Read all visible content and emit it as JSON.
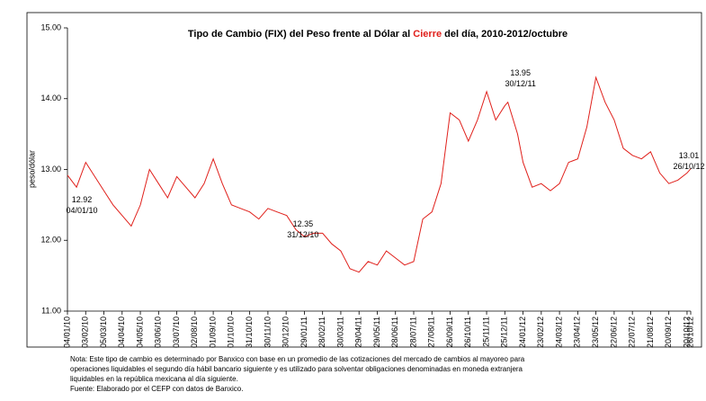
{
  "chart_data": {
    "type": "line",
    "title_parts": [
      "Tipo de Cambio (FIX) del Peso frente al Dólar al ",
      "Cierre",
      " del día, 2010-2012/octubre"
    ],
    "title_colors": [
      "#000000",
      "#e0201b",
      "#000000"
    ],
    "ylabel": "peso/dólar",
    "x": [
      "04/01/10",
      "19/01/10",
      "03/02/10",
      "18/02/10",
      "05/03/10",
      "20/03/10",
      "04/04/10",
      "19/04/10",
      "04/05/10",
      "19/05/10",
      "03/06/10",
      "18/06/10",
      "03/07/10",
      "18/07/10",
      "02/08/10",
      "17/08/10",
      "01/09/10",
      "16/09/10",
      "01/10/10",
      "16/10/10",
      "31/10/10",
      "15/11/10",
      "30/11/10",
      "15/12/10",
      "31/12/10",
      "15/01/11",
      "29/01/11",
      "13/02/11",
      "28/02/11",
      "15/03/11",
      "30/03/11",
      "14/04/11",
      "29/04/11",
      "14/05/11",
      "29/05/11",
      "13/06/11",
      "28/06/11",
      "13/07/11",
      "28/07/11",
      "12/08/11",
      "27/08/11",
      "11/09/11",
      "26/09/11",
      "11/10/11",
      "26/10/11",
      "10/11/11",
      "25/11/11",
      "10/12/11",
      "25/12/11",
      "30/12/11",
      "15/01/12",
      "24/01/12",
      "08/02/12",
      "23/02/12",
      "09/03/12",
      "24/03/12",
      "08/04/12",
      "23/04/12",
      "08/05/12",
      "23/05/12",
      "07/06/12",
      "22/06/12",
      "07/07/12",
      "22/07/12",
      "06/08/12",
      "21/08/12",
      "05/09/12",
      "20/09/12",
      "05/10/12",
      "20/10/12",
      "26/10/12"
    ],
    "series": [
      {
        "name": "FIX",
        "color": "#e0201b",
        "values": [
          12.92,
          12.75,
          13.1,
          12.9,
          12.7,
          12.5,
          12.35,
          12.2,
          12.5,
          13.0,
          12.8,
          12.6,
          12.9,
          12.75,
          12.6,
          12.8,
          13.15,
          12.8,
          12.5,
          12.45,
          12.4,
          12.3,
          12.45,
          12.4,
          12.35,
          12.15,
          12.05,
          12.1,
          12.1,
          11.95,
          11.85,
          11.6,
          11.55,
          11.7,
          11.65,
          11.85,
          11.75,
          11.65,
          11.7,
          12.3,
          12.4,
          12.8,
          13.8,
          13.7,
          13.4,
          13.7,
          14.1,
          13.7,
          13.9,
          13.95,
          13.5,
          13.1,
          12.75,
          12.8,
          12.7,
          12.8,
          13.1,
          13.15,
          13.6,
          14.3,
          13.95,
          13.7,
          13.3,
          13.2,
          13.15,
          13.25,
          12.95,
          12.8,
          12.85,
          12.95,
          13.01
        ]
      }
    ],
    "xlim": [
      "04/01/10",
      "26/10/12"
    ],
    "xticks": [
      "04/01/10",
      "03/02/10",
      "05/03/10",
      "04/04/10",
      "04/05/10",
      "03/06/10",
      "03/07/10",
      "02/08/10",
      "01/09/10",
      "01/10/10",
      "31/10/10",
      "30/11/10",
      "30/12/10",
      "29/01/11",
      "28/02/11",
      "30/03/11",
      "29/04/11",
      "29/05/11",
      "28/06/11",
      "28/07/11",
      "27/08/11",
      "26/09/11",
      "26/10/11",
      "25/11/11",
      "25/12/11",
      "24/01/12",
      "23/02/12",
      "24/03/12",
      "23/04/12",
      "23/05/12",
      "22/06/12",
      "22/07/12",
      "21/08/12",
      "20/09/12",
      "20/10/12",
      "26/10/12"
    ],
    "ylim": [
      11,
      15
    ],
    "yticks": [
      {
        "value": 11,
        "label": "11.00"
      },
      {
        "value": 12,
        "label": "12.00"
      },
      {
        "value": 13,
        "label": "13.00"
      },
      {
        "value": 14,
        "label": "14.00"
      },
      {
        "value": 15,
        "label": "15.00"
      }
    ],
    "annotations": [
      {
        "value": 12.92,
        "x": "04/01/10"
      },
      {
        "value": 12.35,
        "x": "31/12/10"
      },
      {
        "value": 13.95,
        "x": "30/12/11"
      },
      {
        "value": 13.01,
        "x": "26/10/12"
      }
    ],
    "notes": [
      "Nota: Este tipo de cambio es determinado por Banxico con base en un promedio de las cotizaciones del mercado de cambios al mayoreo para",
      "operaciones liquidables el segundo día hábil bancario siguiente y es utilizado para solventar obligaciones denominadas en moneda extranjera",
      "liquidables en la república mexicana al día siguiente.",
      "Fuente: Elaborado por el CEFP con datos de Banxico."
    ]
  }
}
